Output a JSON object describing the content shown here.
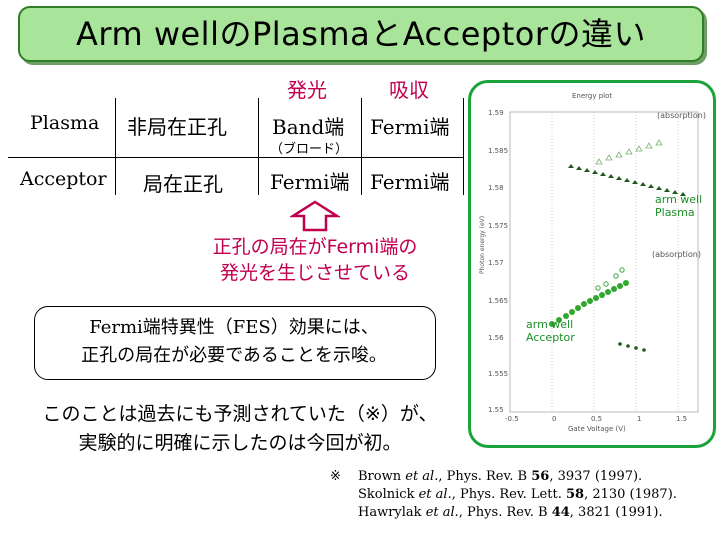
{
  "title": "Arm wellのPlasmaとAcceptorの違い",
  "table": {
    "col_headers": [
      "発光",
      "吸収"
    ],
    "rows": [
      {
        "label": "Plasma",
        "hole": "非局在正孔",
        "emission": "Band端",
        "emission_note": "（ブロード）",
        "absorption": "Fermi端"
      },
      {
        "label": "Acceptor",
        "hole": "局在正孔",
        "emission": "Fermi端",
        "absorption": "Fermi端"
      }
    ]
  },
  "conclusion": [
    "正孔の局在がFermi端の",
    "発光を生じさせている"
  ],
  "fes_box": [
    "Fermi端特異性（FES）効果には、",
    "正孔の局在が必要であることを示唆。"
  ],
  "body": [
    "このことは過去にも予測されていた（※）が、",
    "実験的に明確に示したのは今回が初。"
  ],
  "references": {
    "mark": "※",
    "items": [
      {
        "authors": "Brown",
        "etal": "et al.",
        "journal": ", Phys. Rev. B ",
        "vol": "56",
        "rest": ", 3937 (1997)."
      },
      {
        "authors": "Skolnick",
        "etal": "et al.",
        "journal": ", Phys. Rev. Lett. ",
        "vol": "58",
        "rest": ", 2130 (1987)."
      },
      {
        "authors": "Hawrylak",
        "etal": "et al.",
        "journal": ", Phys. Rev. B ",
        "vol": "44",
        "rest": ", 3821 (1991)."
      }
    ]
  },
  "plot": {
    "title": "Energy plot",
    "ylabel": "Photon energy (eV)",
    "xlabel": "Gate Voltage (V)",
    "yticks": [
      "1.59",
      "1.585",
      "1.58",
      "1.575",
      "1.57",
      "1.565",
      "1.56",
      "1.555",
      "1.55"
    ],
    "xticks": [
      "-0.5",
      "0",
      "0.5",
      "1",
      "1.5"
    ],
    "absorption_label_top": "(absorption)",
    "absorption_label_mid": "(absorption)",
    "plasma_label": [
      "arm well",
      "Plasma"
    ],
    "acceptor_label": [
      "arm well",
      "Acceptor"
    ],
    "color_green": "#1a8f26"
  }
}
